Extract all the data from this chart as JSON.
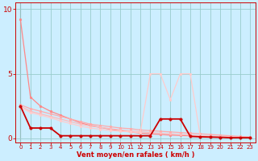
{
  "bg_color": "#cceeff",
  "grid_color": "#99cccc",
  "xlabel": "Vent moyen/en rafales ( km/h )",
  "xlabel_color": "#cc0000",
  "tick_label_color": "#cc0000",
  "spine_color": "#cc0000",
  "xlim": [
    -0.5,
    23.5
  ],
  "ylim": [
    -0.3,
    10.5
  ],
  "yticks": [
    0,
    5,
    10
  ],
  "xticks": [
    0,
    1,
    2,
    3,
    4,
    5,
    6,
    7,
    8,
    9,
    10,
    11,
    12,
    13,
    14,
    15,
    16,
    17,
    18,
    19,
    20,
    21,
    22,
    23
  ],
  "series": [
    {
      "color": "#ff8888",
      "linewidth": 0.9,
      "markersize": 2.0,
      "y": [
        9.2,
        3.2,
        2.5,
        2.1,
        1.8,
        1.5,
        1.2,
        1.0,
        0.85,
        0.7,
        0.6,
        0.5,
        0.4,
        0.35,
        0.3,
        0.25,
        0.22,
        0.2,
        0.15,
        0.12,
        0.1,
        0.08,
        0.07,
        0.05
      ]
    },
    {
      "color": "#ffaaaa",
      "linewidth": 0.9,
      "markersize": 2.0,
      "y": [
        2.6,
        2.3,
        2.1,
        1.9,
        1.7,
        1.5,
        1.3,
        1.1,
        1.0,
        0.9,
        0.8,
        0.75,
        0.65,
        0.6,
        0.55,
        0.5,
        0.45,
        0.4,
        0.35,
        0.3,
        0.25,
        0.2,
        0.15,
        0.1
      ]
    },
    {
      "color": "#ffbbbb",
      "linewidth": 0.9,
      "markersize": 2.0,
      "y": [
        2.5,
        2.1,
        1.9,
        1.7,
        1.5,
        1.3,
        1.1,
        0.95,
        0.85,
        0.75,
        0.65,
        0.58,
        0.52,
        0.45,
        0.4,
        0.35,
        0.3,
        0.25,
        0.2,
        0.17,
        0.14,
        0.12,
        0.1,
        0.08
      ]
    },
    {
      "color": "#ffcccc",
      "linewidth": 0.9,
      "markersize": 2.0,
      "y": [
        2.4,
        2.0,
        1.8,
        1.6,
        1.35,
        1.15,
        0.95,
        0.8,
        0.7,
        0.6,
        0.55,
        0.5,
        0.45,
        5.0,
        5.0,
        3.0,
        5.0,
        5.0,
        0.15,
        0.12,
        0.1,
        0.08,
        0.06,
        0.05
      ]
    },
    {
      "color": "#cc0000",
      "linewidth": 1.3,
      "markersize": 2.5,
      "y": [
        2.5,
        0.8,
        0.8,
        0.8,
        0.2,
        0.2,
        0.2,
        0.2,
        0.2,
        0.2,
        0.2,
        0.2,
        0.2,
        0.2,
        1.5,
        1.5,
        1.5,
        0.15,
        0.12,
        0.1,
        0.08,
        0.05,
        0.05,
        0.05
      ]
    }
  ],
  "marker": "o",
  "vline_x": 0,
  "vline_color": "#888888"
}
